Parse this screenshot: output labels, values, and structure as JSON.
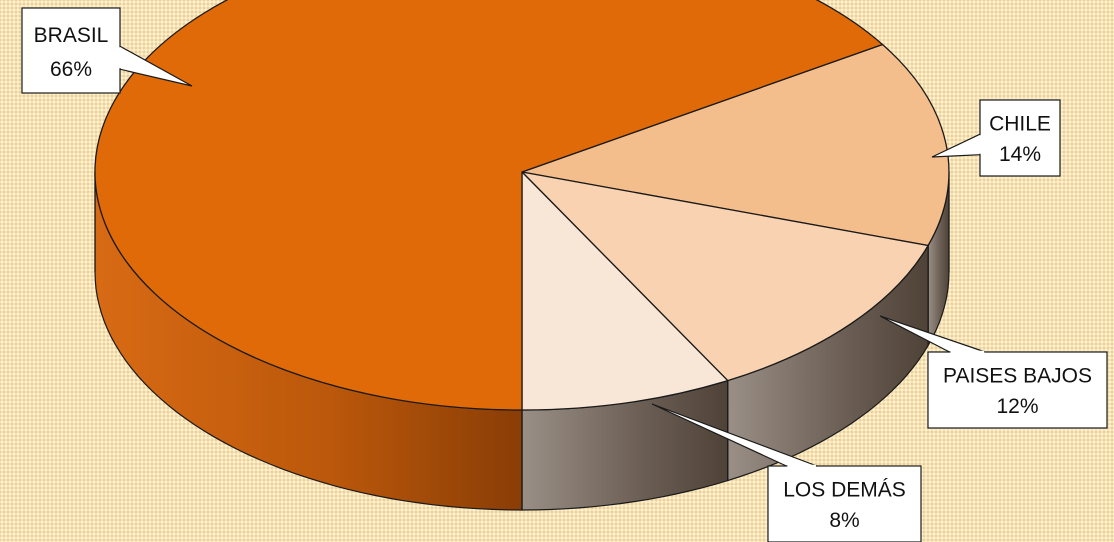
{
  "chart_data": {
    "type": "pie",
    "style": "3d-exploded-pie",
    "slices": [
      {
        "label": "BRASIL",
        "value": 66,
        "value_label": "66%",
        "color": "#e06a08"
      },
      {
        "label": "CHILE",
        "value": 14,
        "value_label": "14%",
        "color": "#f4bd8c"
      },
      {
        "label": "PAISES BAJOS",
        "value": 12,
        "value_label": "12%",
        "color": "#f9d3b1"
      },
      {
        "label": "LOS DEMÁS",
        "value": 8,
        "value_label": "8%",
        "color": "#f8e6d6"
      }
    ],
    "side_colors": {
      "brasil": "#b85a0b",
      "others": "#6b5a4d"
    },
    "background_color": "#f7e3b4",
    "legend": "none"
  }
}
